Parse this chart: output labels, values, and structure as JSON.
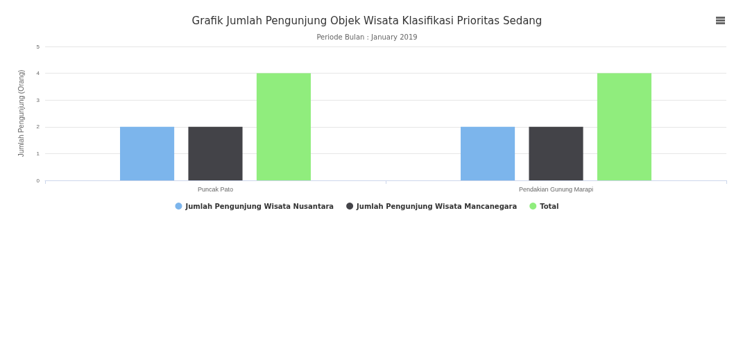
{
  "chart_data": {
    "type": "bar",
    "title": "Grafik Jumlah Pengunjung Objek Wisata Klasifikasi Prioritas Sedang",
    "subtitle": "Periode Bulan : January 2019",
    "ylabel": "Jumlah Pengunjung (Orang)",
    "categories": [
      "Puncak Pato",
      "Pendakian Gunung Marapi"
    ],
    "series": [
      {
        "name": "Jumlah Pengunjung Wisata Nusantara",
        "color": "#7cb5ec",
        "values": [
          2,
          2
        ]
      },
      {
        "name": "Jumlah Pengunjung Wisata Mancanegara",
        "color": "#434348",
        "values": [
          2,
          2
        ]
      },
      {
        "name": "Total",
        "color": "#90ed7d",
        "values": [
          4,
          4
        ]
      }
    ],
    "ylim": [
      0,
      5
    ],
    "yticks": [
      0,
      1,
      2,
      3,
      4,
      5
    ],
    "grid": true,
    "legend": "bottom"
  }
}
